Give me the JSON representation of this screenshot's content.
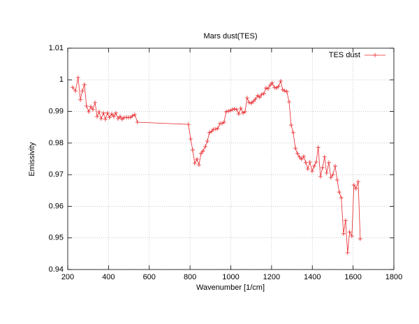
{
  "chart_data": {
    "type": "line",
    "title": "Mars dust(TES)",
    "xlabel": "Wavenumber [1/cm]",
    "ylabel": "Emissivity",
    "xlim": [
      200,
      1800
    ],
    "xticks": [
      200,
      400,
      600,
      800,
      1000,
      1200,
      1400,
      1600,
      1800
    ],
    "ylim": [
      0.94,
      1.01
    ],
    "yticks": [
      0.94,
      0.95,
      0.96,
      0.97,
      0.98,
      0.99,
      1,
      1.01
    ],
    "grid": true,
    "legend": "top-right",
    "series": [
      {
        "name": "TES dust",
        "color": "#e8262a",
        "x": [
          224,
          238,
          251,
          262,
          272,
          282,
          292,
          303,
          313,
          323,
          334,
          344,
          354,
          364,
          375,
          385,
          395,
          405,
          416,
          426,
          436,
          447,
          457,
          467,
          477,
          488,
          498,
          508,
          518,
          529,
          542,
          792,
          803,
          813,
          823,
          834,
          844,
          854,
          864,
          875,
          885,
          895,
          906,
          916,
          926,
          936,
          947,
          957,
          967,
          977,
          988,
          998,
          1008,
          1018,
          1029,
          1039,
          1049,
          1060,
          1070,
          1080,
          1090,
          1101,
          1111,
          1121,
          1132,
          1142,
          1152,
          1162,
          1173,
          1183,
          1193,
          1203,
          1214,
          1224,
          1234,
          1245,
          1255,
          1265,
          1275,
          1286,
          1296,
          1306,
          1317,
          1327,
          1337,
          1347,
          1358,
          1368,
          1378,
          1388,
          1399,
          1409,
          1419,
          1429,
          1440,
          1450,
          1460,
          1470,
          1481,
          1491,
          1501,
          1512,
          1522,
          1532,
          1542,
          1553,
          1563,
          1573,
          1583,
          1594,
          1604,
          1614,
          1625,
          1635
        ],
        "values": [
          0.9976,
          0.9965,
          1.0007,
          0.9937,
          0.9965,
          0.9985,
          0.9917,
          0.9899,
          0.9915,
          0.9906,
          0.9928,
          0.9884,
          0.9899,
          0.9877,
          0.9895,
          0.9875,
          0.9895,
          0.9881,
          0.9892,
          0.9884,
          0.9895,
          0.9877,
          0.9884,
          0.9875,
          0.9881,
          0.9881,
          0.9881,
          0.9881,
          0.9886,
          0.989,
          0.9866,
          0.9859,
          0.9813,
          0.9778,
          0.9736,
          0.9749,
          0.9731,
          0.9767,
          0.9775,
          0.9789,
          0.9806,
          0.9833,
          0.9837,
          0.9844,
          0.9844,
          0.9846,
          0.9862,
          0.9862,
          0.9866,
          0.9899,
          0.9901,
          0.9903,
          0.9906,
          0.9908,
          0.9906,
          0.9892,
          0.991,
          0.9895,
          0.9899,
          0.9943,
          0.9928,
          0.9926,
          0.9932,
          0.9939,
          0.995,
          0.9945,
          0.9954,
          0.9956,
          0.9974,
          0.9972,
          0.9983,
          0.999,
          0.9976,
          0.9974,
          0.9979,
          0.9996,
          0.9968,
          0.9965,
          0.9963,
          0.993,
          0.9857,
          0.9833,
          0.9784,
          0.9767,
          0.9756,
          0.9749,
          0.9758,
          0.9738,
          0.9718,
          0.974,
          0.9711,
          0.9727,
          0.974,
          0.9786,
          0.9694,
          0.9722,
          0.9756,
          0.9705,
          0.9738,
          0.9691,
          0.97,
          0.9727,
          0.9683,
          0.9645,
          0.9627,
          0.9513,
          0.9555,
          0.9453,
          0.9519,
          0.9506,
          0.9667,
          0.9656,
          0.9678,
          0.9497
        ]
      }
    ]
  }
}
